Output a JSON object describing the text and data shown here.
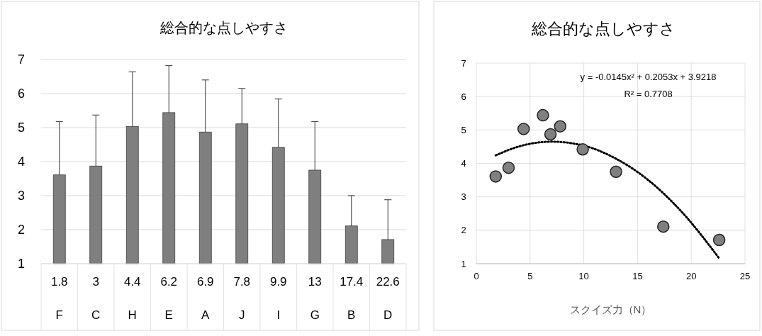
{
  "chart_data": [
    {
      "type": "bar",
      "title": "総合的な点しやすさ",
      "categories": [
        "F",
        "C",
        "H",
        "E",
        "A",
        "J",
        "I",
        "G",
        "B",
        "D"
      ],
      "values": [
        3.61,
        3.87,
        5.03,
        5.44,
        4.87,
        5.11,
        4.42,
        3.75,
        2.11,
        1.71
      ],
      "errors": [
        [
          3.61,
          5.18
        ],
        [
          3.87,
          5.37
        ],
        [
          5.03,
          6.64
        ],
        [
          5.44,
          6.82
        ],
        [
          4.87,
          6.4
        ],
        [
          5.11,
          6.15
        ],
        [
          4.42,
          5.84
        ],
        [
          3.75,
          5.18
        ],
        [
          2.11,
          3.0
        ],
        [
          1.71,
          2.88
        ]
      ],
      "color": "#7f7f7f",
      "ylim": [
        1,
        7
      ],
      "yticks": [
        1,
        2,
        3,
        4,
        5,
        6,
        7
      ],
      "grid": "y",
      "annotations": [
        "1.8",
        "3",
        "4.4",
        "6.2",
        "6.9",
        "7.8",
        "9.9",
        "13",
        "17.4",
        "22.6"
      ]
    },
    {
      "type": "scatter",
      "title": "総合的な点しやすさ",
      "xlabel": "スクイズ力（N）",
      "series": [
        {
          "type": "scatter",
          "color": "#808080",
          "marker": "circle",
          "x": [
            1.8,
            3,
            4.4,
            6.2,
            6.9,
            7.8,
            9.9,
            13,
            17.4,
            22.6
          ],
          "values": [
            3.61,
            3.87,
            5.03,
            5.44,
            4.87,
            5.11,
            4.42,
            3.75,
            2.11,
            1.71
          ]
        },
        {
          "type": "line",
          "color": "#000000",
          "marker": "none",
          "line_style": "dotted",
          "x": [
            1.8,
            4,
            7,
            10,
            13,
            16,
            19,
            22.6
          ],
          "values": [
            4.24,
            4.51,
            4.65,
            4.53,
            4.14,
            3.5,
            2.59,
            1.16
          ]
        }
      ],
      "xlim": [
        0,
        25
      ],
      "xticks": [
        0,
        5,
        10,
        15,
        20,
        25
      ],
      "ylim": [
        1,
        7
      ],
      "yticks": [
        1,
        2,
        3,
        4,
        5,
        6,
        7
      ],
      "grid": true,
      "annotations": [
        "y = -0.0145x² + 0.2053x + 3.9218",
        "R² = 0.7708"
      ]
    }
  ]
}
